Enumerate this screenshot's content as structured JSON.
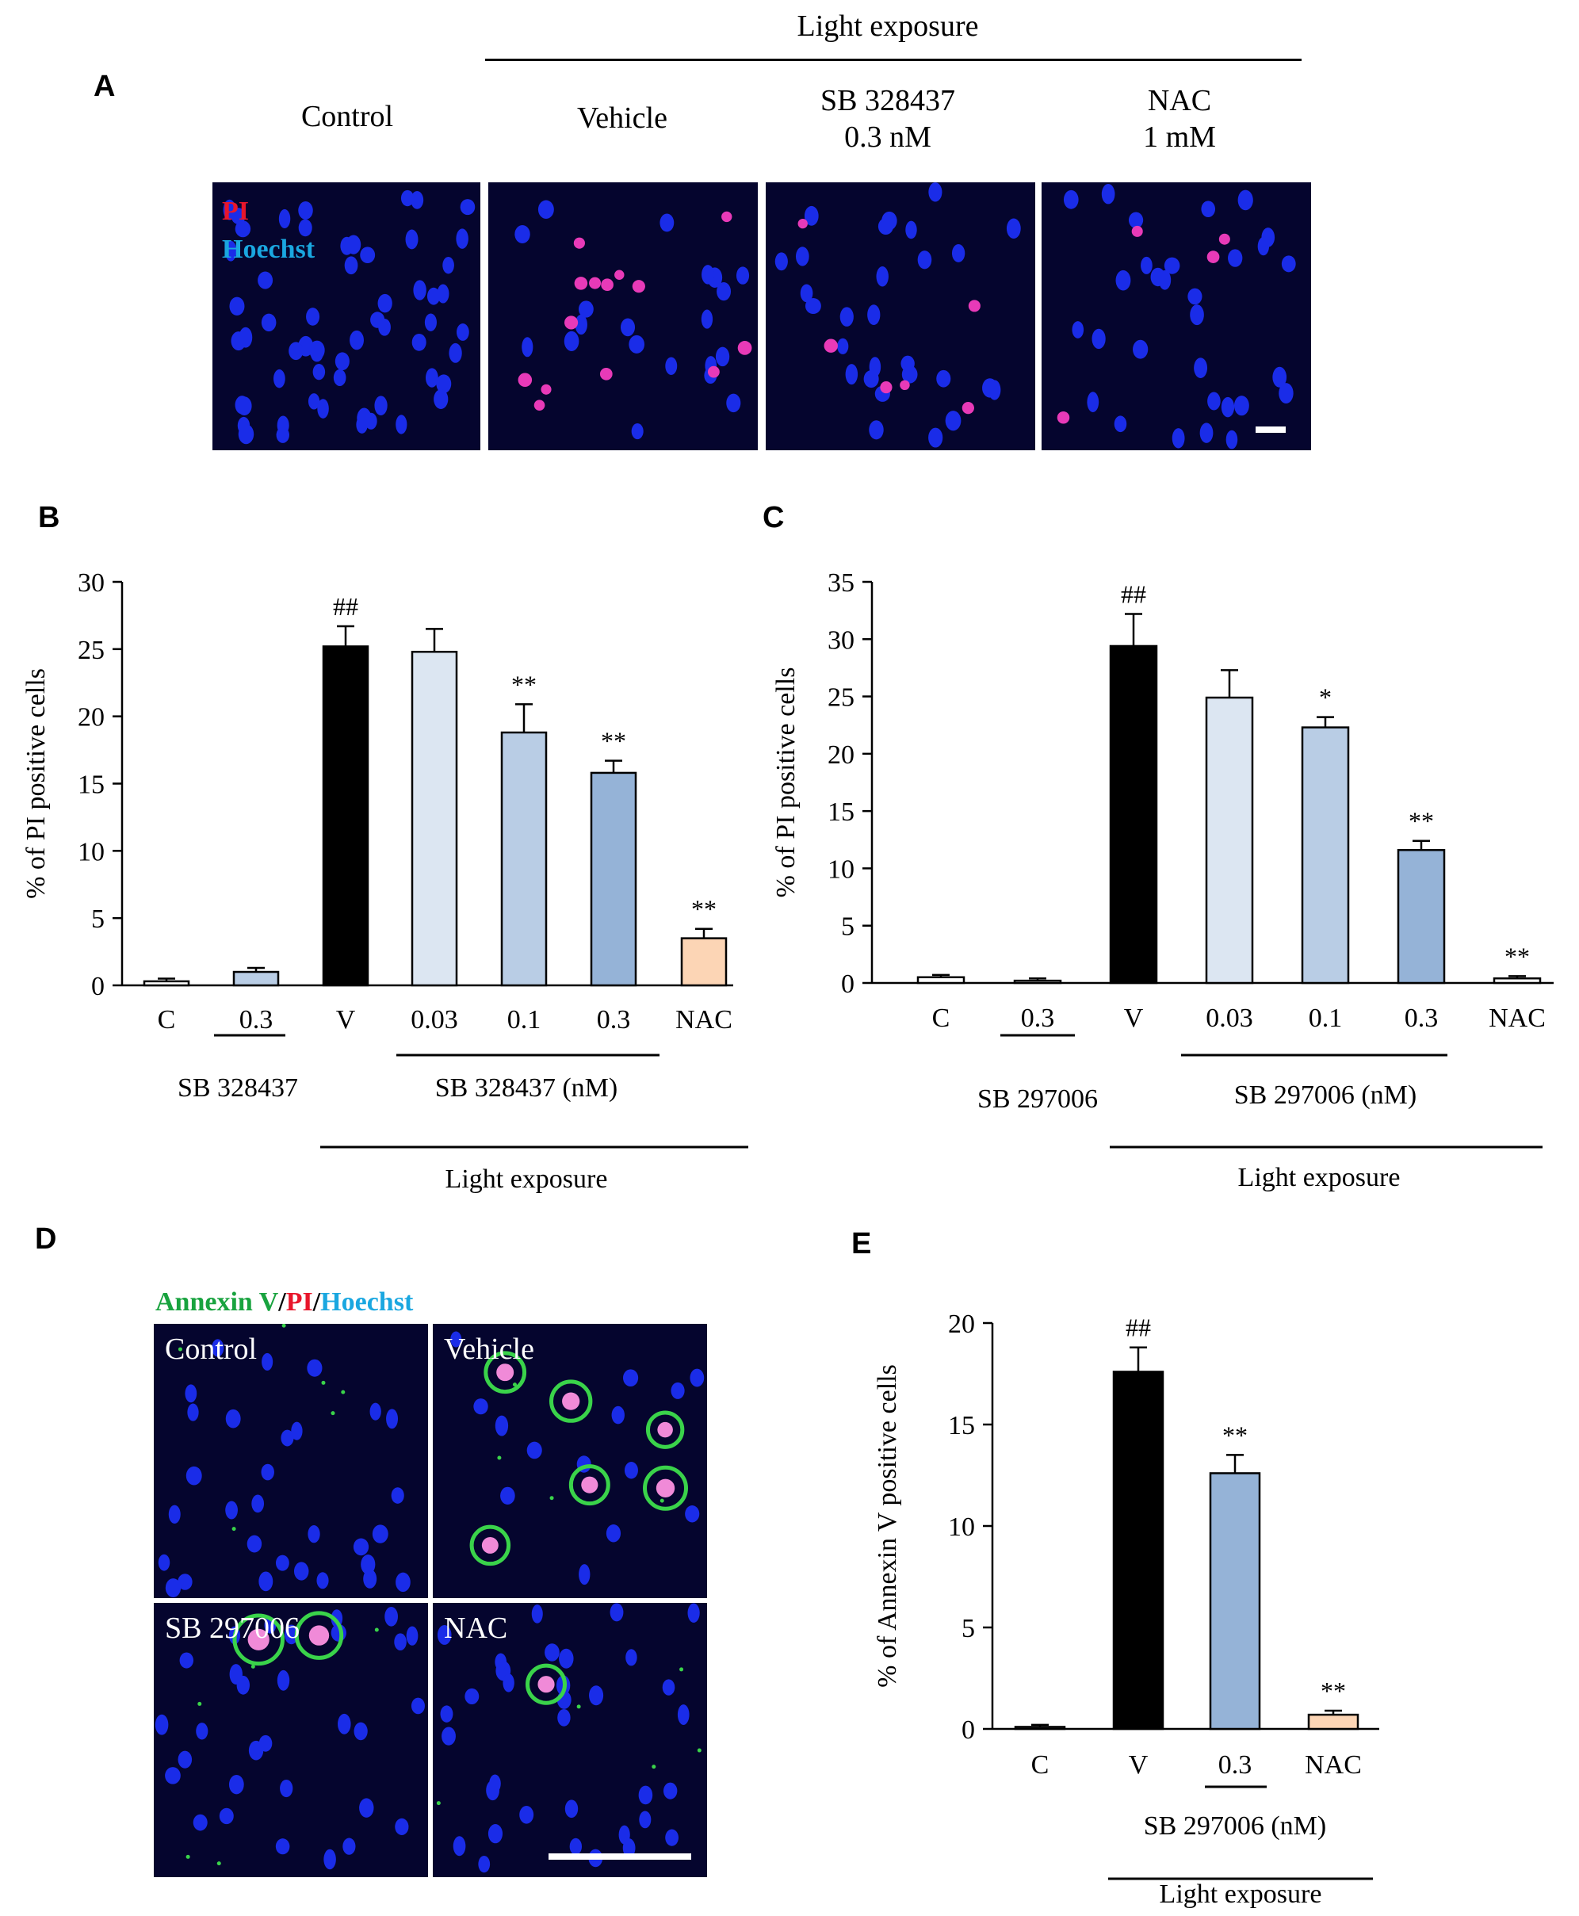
{
  "panels": {
    "A": {
      "letter": "A",
      "light_header": "Light   exposure",
      "columns": [
        {
          "line1": "Control",
          "line2": ""
        },
        {
          "line1": "Vehicle",
          "line2": ""
        },
        {
          "line1": "SB 328437",
          "line2": "0.3 nM"
        },
        {
          "line1": "NAC",
          "line2": "1 mM"
        }
      ],
      "stain_pi": "PI",
      "stain_hoechst": "Hoechst"
    },
    "B": {
      "letter": "B"
    },
    "C": {
      "letter": "C"
    },
    "D": {
      "letter": "D",
      "stain_annexin": "Annexin V",
      "stain_sep1": "/",
      "stain_pi": "PI",
      "stain_sep2": "/",
      "stain_hoechst": "Hoechst",
      "tiles": [
        "Control",
        "Vehicle",
        "SB 297006",
        "NAC"
      ]
    },
    "E": {
      "letter": "E"
    }
  },
  "colors": {
    "black": "#000000",
    "light_blue": "#dce6f2",
    "mid_blue": "#b9cde5",
    "dark_blue": "#95b3d7",
    "peach": "#fcd5b5",
    "white": "#ffffff",
    "pi_red": "#e8162b",
    "hoechst_blue": "#1aa7e0",
    "annexin_green": "#19a33f"
  },
  "chart_data": [
    {
      "id": "B",
      "type": "bar",
      "ylabel": "% of PI positive cells",
      "ylim": [
        0,
        30
      ],
      "yticks": [
        0,
        5,
        10,
        15,
        20,
        25,
        30
      ],
      "categories": [
        "C",
        "0.3",
        "V",
        "0.03",
        "0.1",
        "0.3",
        "NAC"
      ],
      "values": [
        0.3,
        1.0,
        25.2,
        24.8,
        18.8,
        15.8,
        3.5
      ],
      "errors": [
        0.2,
        0.3,
        1.5,
        1.7,
        2.1,
        0.9,
        0.7
      ],
      "colors": [
        "white",
        "mid_blue",
        "black",
        "light_blue",
        "mid_blue",
        "dark_blue",
        "peach"
      ],
      "marks": [
        "",
        "",
        "##",
        "",
        "**",
        "**",
        "**"
      ],
      "group_labels": [
        {
          "text": "SB 328437",
          "from": 1,
          "to": 1
        },
        {
          "text": "SB 328437 (nM)",
          "from": 3,
          "to": 5
        },
        {
          "text": "Light exposure",
          "from": 2,
          "to": 6
        }
      ]
    },
    {
      "id": "C",
      "type": "bar",
      "ylabel": "% of PI positive cells",
      "ylim": [
        0,
        35
      ],
      "yticks": [
        0,
        5,
        10,
        15,
        20,
        25,
        30,
        35
      ],
      "categories": [
        "C",
        "0.3",
        "V",
        "0.03",
        "0.1",
        "0.3",
        "NAC"
      ],
      "values": [
        0.5,
        0.2,
        29.4,
        24.9,
        22.3,
        11.6,
        0.4
      ],
      "errors": [
        0.2,
        0.2,
        2.8,
        2.4,
        0.9,
        0.8,
        0.2
      ],
      "colors": [
        "white",
        "white",
        "black",
        "light_blue",
        "mid_blue",
        "dark_blue",
        "white"
      ],
      "marks": [
        "",
        "",
        "##",
        "",
        "*",
        "**",
        "**"
      ],
      "group_labels": [
        {
          "text": "SB 297006",
          "from": 1,
          "to": 1
        },
        {
          "text": "SB 297006 (nM)",
          "from": 3,
          "to": 5
        },
        {
          "text": "Light exposure",
          "from": 2,
          "to": 6
        }
      ]
    },
    {
      "id": "E",
      "type": "bar",
      "ylabel": "% of Annexin V positive cells",
      "ylim": [
        0,
        20
      ],
      "yticks": [
        0,
        5,
        10,
        15,
        20
      ],
      "categories": [
        "C",
        "V",
        "0.3",
        "NAC"
      ],
      "values": [
        0.1,
        17.6,
        12.6,
        0.7
      ],
      "errors": [
        0.1,
        1.2,
        0.9,
        0.2
      ],
      "colors": [
        "white",
        "black",
        "dark_blue",
        "peach"
      ],
      "marks": [
        "",
        "##",
        "**",
        "**"
      ],
      "group_labels": [
        {
          "text": "SB 297006 (nM)",
          "from": 2,
          "to": 2
        },
        {
          "text": "Light exposure",
          "from": 1,
          "to": 3
        }
      ]
    }
  ]
}
